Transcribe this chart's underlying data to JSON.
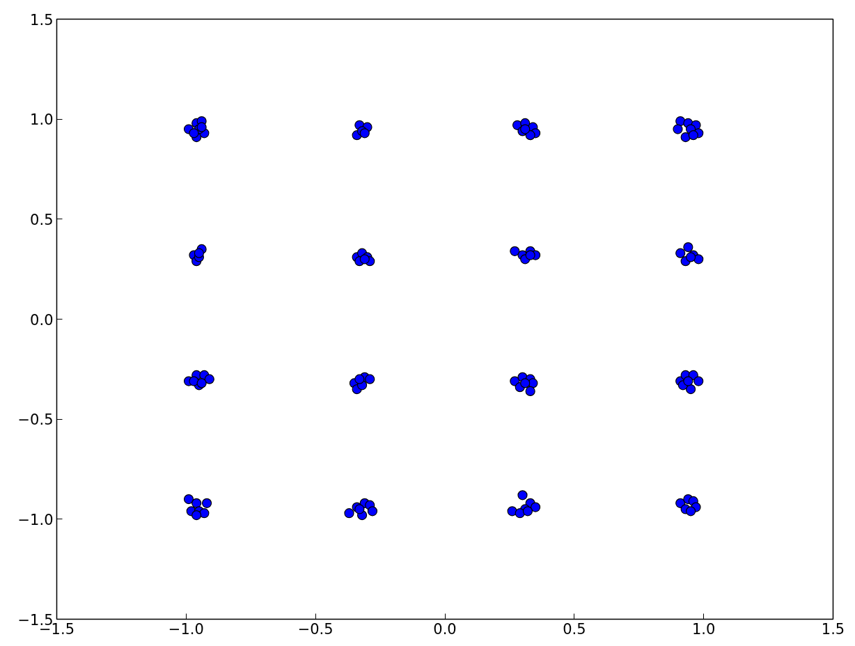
{
  "chart_data": {
    "type": "scatter",
    "marker": "circle",
    "grid": false,
    "xlim": [
      -1.5,
      1.5
    ],
    "ylim": [
      -1.5,
      1.5
    ],
    "xticks": [
      {
        "value": -1.5,
        "label": "−1.5"
      },
      {
        "value": -1.0,
        "label": "−1.0"
      },
      {
        "value": -0.5,
        "label": "−0.5"
      },
      {
        "value": 0,
        "label": "0.0"
      },
      {
        "value": 0.5,
        "label": "0.5"
      },
      {
        "value": 1.0,
        "label": "1.0"
      },
      {
        "value": 1.5,
        "label": "1.5"
      }
    ],
    "yticks": [
      {
        "value": -1.5,
        "label": "−1.5"
      },
      {
        "value": -1.0,
        "label": "−1.0"
      },
      {
        "value": -0.5,
        "label": "−0.5"
      },
      {
        "value": 0,
        "label": "0.0"
      },
      {
        "value": 0.5,
        "label": "0.5"
      },
      {
        "value": 1.0,
        "label": "1.0"
      },
      {
        "value": 1.5,
        "label": "1.5"
      }
    ],
    "series": [
      {
        "color": "#0000ff",
        "x": [
          -0.99,
          -0.96,
          -0.94,
          -0.93,
          -0.96,
          -0.95,
          -0.97,
          -0.94,
          -0.33,
          -0.3,
          -0.34,
          -0.32,
          -0.31,
          0.28,
          0.31,
          0.34,
          0.35,
          0.3,
          0.33,
          0.31,
          0.91,
          0.9,
          0.94,
          0.97,
          0.98,
          0.93,
          0.95,
          0.96,
          -0.97,
          -0.94,
          -0.96,
          -0.95,
          -0.95,
          -0.34,
          -0.32,
          -0.3,
          -0.29,
          -0.33,
          -0.31,
          0.27,
          0.3,
          0.33,
          0.35,
          0.31,
          0.33,
          0.91,
          0.94,
          0.96,
          0.98,
          0.93,
          0.95,
          -0.99,
          -0.96,
          -0.93,
          -0.91,
          -0.95,
          -0.97,
          -0.94,
          -0.35,
          -0.34,
          -0.31,
          -0.29,
          -0.32,
          -0.33,
          0.27,
          0.3,
          0.33,
          0.34,
          0.33,
          0.29,
          0.31,
          0.91,
          0.93,
          0.96,
          0.98,
          0.95,
          0.92,
          0.94,
          -0.99,
          -0.96,
          -0.92,
          -0.98,
          -0.95,
          -0.93,
          -0.96,
          -0.37,
          -0.34,
          -0.31,
          -0.29,
          -0.28,
          -0.32,
          -0.33,
          0.26,
          0.3,
          0.33,
          0.35,
          0.31,
          0.29,
          0.32,
          0.91,
          0.94,
          0.96,
          0.97,
          0.93,
          0.95
        ],
        "values": [
          0.95,
          0.98,
          0.99,
          0.93,
          0.91,
          0.95,
          0.93,
          0.96,
          0.97,
          0.96,
          0.92,
          0.94,
          0.93,
          0.97,
          0.98,
          0.96,
          0.93,
          0.94,
          0.92,
          0.95,
          0.99,
          0.95,
          0.98,
          0.97,
          0.93,
          0.91,
          0.95,
          0.92,
          0.32,
          0.35,
          0.29,
          0.31,
          0.33,
          0.31,
          0.33,
          0.31,
          0.29,
          0.29,
          0.3,
          0.34,
          0.32,
          0.34,
          0.32,
          0.3,
          0.32,
          0.33,
          0.36,
          0.32,
          0.3,
          0.29,
          0.31,
          -0.31,
          -0.28,
          -0.28,
          -0.3,
          -0.33,
          -0.31,
          -0.32,
          -0.32,
          -0.35,
          -0.29,
          -0.3,
          -0.33,
          -0.3,
          -0.31,
          -0.29,
          -0.3,
          -0.32,
          -0.36,
          -0.34,
          -0.32,
          -0.31,
          -0.28,
          -0.28,
          -0.31,
          -0.35,
          -0.33,
          -0.31,
          -0.9,
          -0.92,
          -0.92,
          -0.96,
          -0.96,
          -0.97,
          -0.98,
          -0.97,
          -0.94,
          -0.92,
          -0.93,
          -0.96,
          -0.98,
          -0.95,
          -0.96,
          -0.88,
          -0.92,
          -0.94,
          -0.95,
          -0.97,
          -0.96,
          -0.92,
          -0.9,
          -0.91,
          -0.94,
          -0.95,
          -0.96
        ]
      }
    ]
  }
}
